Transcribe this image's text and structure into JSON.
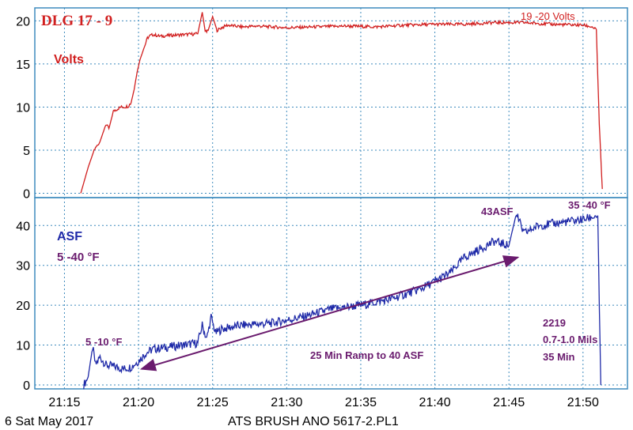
{
  "chart_data": {
    "type": "line",
    "title": "DLG 17 - 9",
    "x_tick_labels": [
      "21:15",
      "21:20",
      "21:25",
      "21:30",
      "21:35",
      "21:40",
      "21:45",
      "21:50"
    ],
    "x_ticks_min": [
      15,
      20,
      25,
      30,
      35,
      40,
      45,
      50
    ],
    "xlim_min": [
      13,
      53
    ],
    "footer_left": "6 Sat May 2017",
    "footer_center": "ATS BRUSH ANO 5617-2.PL1",
    "panels": [
      {
        "name": "voltage",
        "ylabel": "Volts",
        "ylim": [
          -0.5,
          21.5
        ],
        "yticks": [
          0,
          5,
          10,
          15,
          20
        ],
        "series": [
          {
            "name": "Volts",
            "color": "#d11f1f",
            "x_min": [
              16.1,
              16.6,
              17.0,
              17.4,
              17.8,
              18.0,
              18.3,
              18.6,
              18.8,
              19.0,
              19.3,
              19.5,
              19.7,
              19.9,
              20.1,
              20.4,
              20.6,
              20.8,
              21.0,
              21.5,
              22.0,
              23.0,
              24.0,
              24.3,
              24.5,
              24.7,
              25.0,
              25.3,
              25.6,
              26.0,
              27.0,
              28.0,
              30.0,
              32.0,
              34.0,
              36.0,
              38.0,
              40.0,
              42.0,
              44.0,
              46.0,
              48.0,
              50.0,
              50.6,
              50.9,
              51.1,
              51.3
            ],
            "y": [
              0.0,
              3.0,
              5.0,
              6.0,
              8.0,
              7.5,
              9.5,
              9.8,
              10.0,
              10.0,
              10.1,
              10.5,
              12.0,
              14.0,
              15.5,
              17.0,
              18.0,
              18.3,
              18.4,
              18.2,
              18.3,
              18.4,
              18.5,
              21.0,
              18.8,
              18.9,
              20.5,
              18.9,
              19.2,
              19.5,
              19.3,
              19.4,
              19.2,
              19.3,
              19.4,
              19.3,
              19.5,
              19.6,
              19.6,
              19.8,
              19.8,
              19.6,
              19.5,
              19.3,
              19.0,
              8.0,
              0.5
            ]
          }
        ],
        "annotations": [
          "Volts",
          "19 -20 Volts"
        ]
      },
      {
        "name": "current",
        "ylim": [
          -1,
          47
        ],
        "yticks": [
          0,
          10,
          20,
          30,
          40
        ],
        "series": [
          {
            "name": "ASF",
            "color": "#1f2aa8",
            "x_min": [
              16.3,
              16.6,
              16.9,
              17.1,
              17.4,
              17.8,
              18.5,
              19.0,
              19.5,
              20.0,
              20.5,
              21.0,
              22.0,
              23.0,
              24.0,
              24.3,
              24.6,
              24.9,
              25.2,
              25.6,
              27.0,
              29.0,
              31.0,
              33.0,
              35.0,
              37.0,
              39.0,
              40.0,
              41.0,
              42.0,
              43.0,
              44.0,
              45.0,
              45.5,
              46.0,
              47.0,
              48.0,
              49.0,
              50.0,
              50.5,
              51.0,
              51.1,
              51.2
            ],
            "y": [
              0.0,
              2.0,
              9.5,
              5.0,
              7.0,
              5.0,
              4.5,
              4.0,
              4.5,
              6.0,
              8.0,
              9.0,
              9.5,
              10.0,
              10.5,
              15.0,
              11.5,
              17.0,
              13.0,
              14.0,
              15.0,
              15.5,
              17.0,
              19.0,
              20.0,
              21.5,
              24.0,
              26.0,
              28.0,
              32.0,
              34.0,
              36.0,
              35.0,
              43.0,
              38.0,
              40.0,
              40.5,
              41.0,
              41.5,
              42.0,
              42.5,
              20.0,
              0.0
            ]
          }
        ],
        "annotations": [
          "ASF",
          "5 -40 °F",
          "5 -10 °F",
          "43ASF",
          "35 -40 °F",
          "25 Min Ramp to 40 ASF",
          "2219",
          "0.7-1.0 Mils",
          "35 Min"
        ]
      }
    ],
    "arrow": {
      "from_min": 20.2,
      "to_min": 45.6,
      "from_y": 4.0,
      "to_y": 32.0,
      "label": "25 Min Ramp to 40 ASF"
    }
  },
  "colors": {
    "grid": "#3e8bbd",
    "volts": "#d11f1f",
    "asf": "#1f2aa8",
    "annotation": "#6a1b6e"
  }
}
